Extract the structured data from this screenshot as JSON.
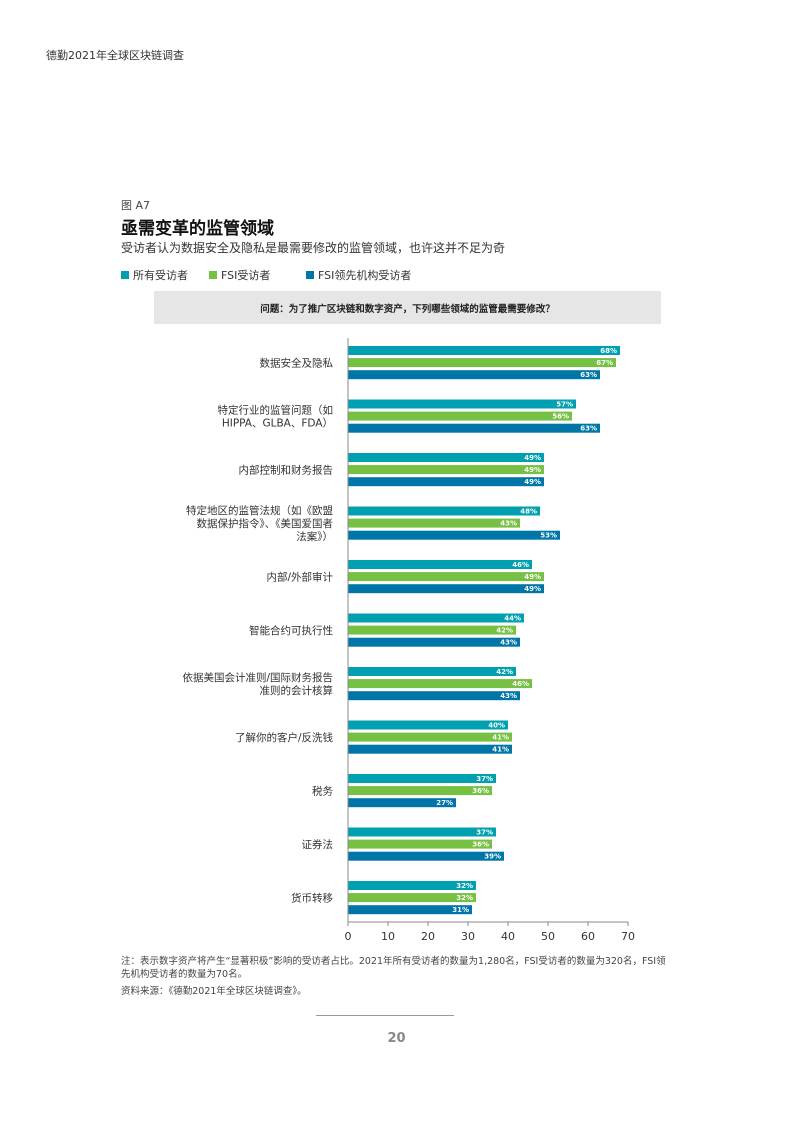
{
  "header": {
    "title": "德勤2021年全球区块链调查"
  },
  "figure": {
    "label": "图 A7",
    "title": "亟需变革的监管领域",
    "subtitle": "受访者认为数据安全及隐私是最需要修改的监管领域，也许这并不足为奇",
    "question": "问题：为了推广区块链和数字资产，下列哪些领域的监管最需要修改？"
  },
  "legend": [
    {
      "label": "所有受访者",
      "color": "#00a0b0"
    },
    {
      "label": "FSI受访者",
      "color": "#76c043"
    },
    {
      "label": "FSI领先机构受访者",
      "color": "#0076a8"
    }
  ],
  "chart_data": {
    "type": "bar",
    "orientation": "horizontal",
    "categories": [
      [
        "数据安全及隐私"
      ],
      [
        "特定行业的监管问题（如",
        "HIPPA、GLBA、FDA）"
      ],
      [
        "内部控制和财务报告"
      ],
      [
        "特定地区的监管法规（如《欧盟",
        "数据保护指令》、《美国爱国者",
        "法案》）"
      ],
      [
        "内部/外部审计"
      ],
      [
        "智能合约可执行性"
      ],
      [
        "依据美国会计准则/国际财务报告",
        "准则的会计核算"
      ],
      [
        "了解你的客户/反洗钱"
      ],
      [
        "税务"
      ],
      [
        "证券法"
      ],
      [
        "货币转移"
      ]
    ],
    "series": [
      {
        "name": "所有受访者",
        "color": "#00a0b0",
        "values": [
          68,
          57,
          49,
          48,
          46,
          44,
          42,
          40,
          37,
          37,
          32
        ]
      },
      {
        "name": "FSI受访者",
        "color": "#76c043",
        "values": [
          67,
          56,
          49,
          43,
          49,
          42,
          46,
          41,
          36,
          36,
          32
        ]
      },
      {
        "name": "FSI领先机构受访者",
        "color": "#0076a8",
        "values": [
          63,
          63,
          49,
          53,
          49,
          43,
          43,
          41,
          27,
          39,
          31
        ]
      }
    ],
    "value_suffix": "%",
    "xlim": [
      0,
      70
    ],
    "xticks": [
      "0",
      "10",
      "20",
      "30",
      "40",
      "50",
      "60",
      "70"
    ]
  },
  "footnote": "注：表示数字资产将产生“显著积极”影响的受访者占比。2021年所有受访者的数量为1,280名，FSI受访者的数量为320名，FSI领先机构受访者的数量为70名。",
  "source": "资料来源：《德勤2021年全球区块链调查》。",
  "page_number": "20"
}
